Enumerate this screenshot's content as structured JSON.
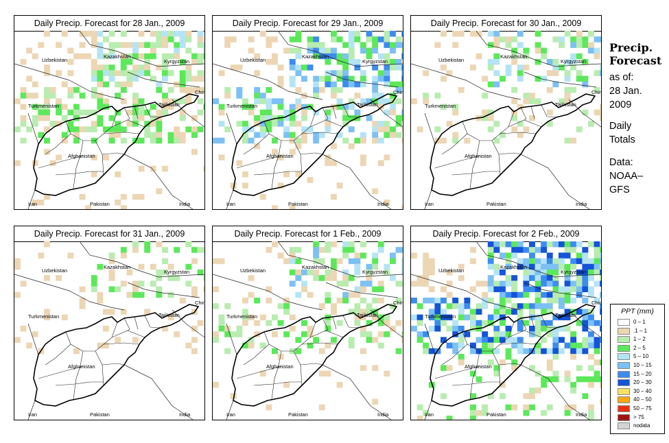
{
  "panels": [
    {
      "title": "Daily Precip. Forecast for  28 Jan., 2009"
    },
    {
      "title": "Daily Precip. Forecast for  29 Jan., 2009"
    },
    {
      "title": "Daily Precip. Forecast for  30 Jan., 2009"
    },
    {
      "title": "Daily Precip. Forecast for  31 Jan., 2009"
    },
    {
      "title": "Daily Precip. Forecast for  1 Feb., 2009"
    },
    {
      "title": "Daily Precip. Forecast for  2 Feb., 2009"
    }
  ],
  "map_labels": {
    "uzbekistan": "Uzbekistan",
    "kazakhstan": "Kazakhstan",
    "kyrgyzstan": "Kyrgyzstan",
    "china": "China",
    "turkmenistan": "Turkmenistan",
    "tajikistan": "Tajikistan",
    "afghanistan": "Afghanistan",
    "iran": "Iran",
    "pakistan": "Pakistan",
    "india": "India"
  },
  "sidebar": {
    "title_line1": "Precip.",
    "title_line2": "Forecast",
    "asof_line1": "as of:",
    "asof_line2": "28 Jan.",
    "asof_line3": "2009",
    "totals_line1": "Daily",
    "totals_line2": "Totals",
    "data_line1": "Data:",
    "data_line2": "NOAA–",
    "data_line3": "GFS"
  },
  "legend": {
    "title": "PPT (mm)",
    "items": [
      {
        "label": "0 – 1",
        "color": "#ffffff"
      },
      {
        "label": ".1 – 1",
        "color": "#ecd6b4"
      },
      {
        "label": "1 – 2",
        "color": "#b8ecb0"
      },
      {
        "label": "2 – 5",
        "color": "#5ce85a"
      },
      {
        "label": "5 – 10",
        "color": "#b4e4f4"
      },
      {
        "label": "10 – 15",
        "color": "#7cc0f4"
      },
      {
        "label": "15 – 20",
        "color": "#3c8cf0"
      },
      {
        "label": "20 – 30",
        "color": "#1454d8"
      },
      {
        "label": "30 – 40",
        "color": "#f8e064"
      },
      {
        "label": "40 – 50",
        "color": "#f8a814"
      },
      {
        "label": "50 – 75",
        "color": "#e83014"
      },
      {
        "label": "> 75",
        "color": "#a01414"
      },
      {
        "label": "nodata",
        "color": "#d4d4d4"
      }
    ]
  }
}
